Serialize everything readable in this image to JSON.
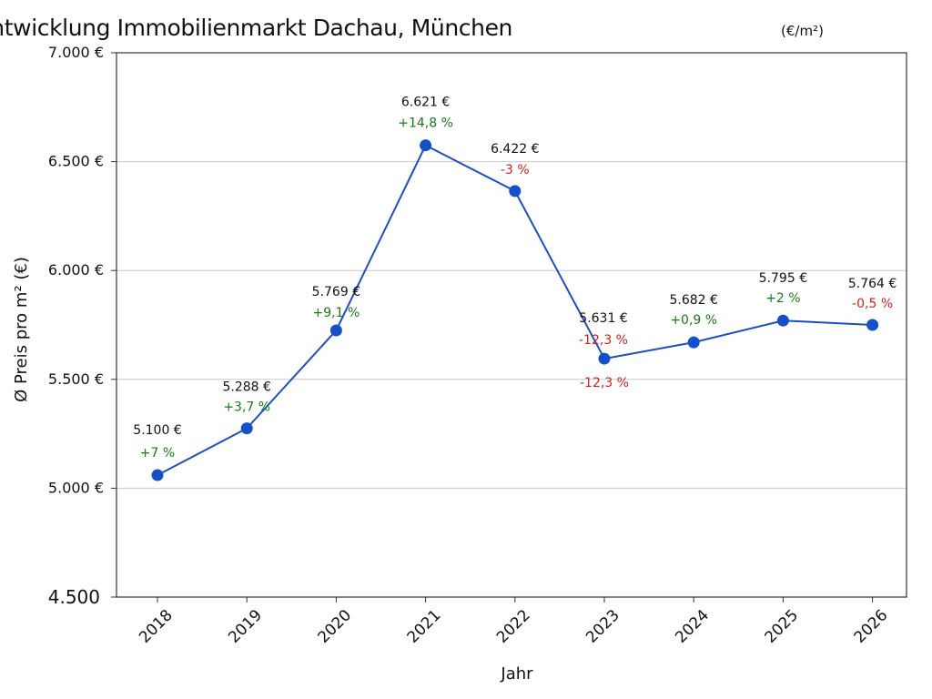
{
  "chart_data": {
    "type": "line",
    "title": "Preisentwicklung Immobilienmarkt Dachau, München",
    "title_unit": "(€/m²)",
    "xlabel": "Jahr",
    "ylabel": "Ø Preis pro m²  (€)",
    "categories": [
      "2018",
      "2019",
      "2020",
      "2021",
      "2022",
      "2023",
      "2024",
      "2025",
      "2026"
    ],
    "series": [
      {
        "values": [
          5060,
          5275,
          5725,
          6575,
          6365,
          5595,
          5670,
          5770,
          5750
        ],
        "value_labels": [
          "5.100 €",
          "5.288 €",
          "5.769 €",
          "6.621 €",
          "6.422 €",
          "5.631 €",
          "5.682 €",
          "5.795 €",
          "5.764 €"
        ],
        "change_labels": [
          "+7 %",
          "+3,7 %",
          "+9,1 %",
          "+14,8 %",
          "-3 %",
          "-12,3 %",
          "+0,9 %",
          "+2 %",
          "-0,5 %"
        ]
      }
    ],
    "extra_annotation": {
      "category": "2023",
      "text": "-12,3 %"
    },
    "ylim": [
      4500,
      7000
    ],
    "yticks": [
      {
        "value": 4500,
        "label": "4.500"
      },
      {
        "value": 5000,
        "label": "5.000 €"
      },
      {
        "value": 5500,
        "label": "5.500 €"
      },
      {
        "value": 6000,
        "label": "6.000 €"
      },
      {
        "value": 6500,
        "label": "6.500 €"
      },
      {
        "value": 7000,
        "label": "7.000 €"
      }
    ],
    "grid": {
      "horizontal": true,
      "vertical": false
    },
    "colors": {
      "line": "#1f4fbf",
      "marker": "#1550c8",
      "positive": "#1a7a1a",
      "negative": "#d42020",
      "grid": "#c8c8c8",
      "axis": "#333333"
    }
  }
}
